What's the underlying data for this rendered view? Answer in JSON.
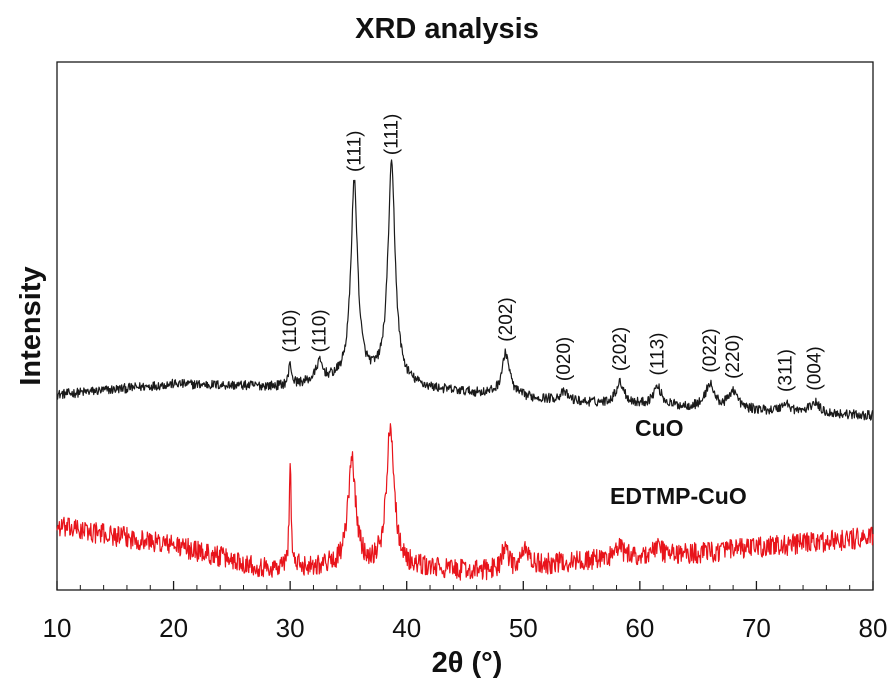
{
  "chart_data": {
    "type": "line",
    "title": "XRD analysis",
    "xlabel": "2θ (°)",
    "ylabel": "Intensity",
    "xlim": [
      10,
      80
    ],
    "ylim": [
      0,
      100
    ],
    "x_ticks": [
      "10",
      "20",
      "30",
      "40",
      "50",
      "60",
      "70",
      "80"
    ],
    "y_ticks_labeled": false,
    "grid": false,
    "series": [
      {
        "name": "CuO",
        "color": "#1a1a1a",
        "baseline": [
          [
            10,
            37
          ],
          [
            20,
            39
          ],
          [
            29,
            38.5
          ],
          [
            36,
            40
          ],
          [
            42,
            38
          ],
          [
            55,
            35.5
          ],
          [
            65,
            34.5
          ],
          [
            80,
            33
          ]
        ],
        "noise": 0.9,
        "peaks": [
          {
            "x": 30.0,
            "h": 4,
            "w": 0.15,
            "label": "(110)"
          },
          {
            "x": 32.5,
            "h": 3.5,
            "w": 0.35,
            "label": "(110)"
          },
          {
            "x": 35.5,
            "h": 37,
            "w": 0.35,
            "label": "(111)"
          },
          {
            "x": 38.7,
            "h": 41,
            "w": 0.38,
            "label": "(111)"
          },
          {
            "x": 48.5,
            "h": 8,
            "w": 0.4,
            "label": "(202)"
          },
          {
            "x": 53.5,
            "h": 1.5,
            "w": 0.45,
            "label": "(020)"
          },
          {
            "x": 58.3,
            "h": 4,
            "w": 0.45,
            "label": "(202)"
          },
          {
            "x": 61.5,
            "h": 3.5,
            "w": 0.45,
            "label": "(113)"
          },
          {
            "x": 66.0,
            "h": 4.5,
            "w": 0.45,
            "label": "(022)"
          },
          {
            "x": 68.0,
            "h": 3.5,
            "w": 0.45,
            "label": "(220)"
          },
          {
            "x": 72.5,
            "h": 1.5,
            "w": 0.45,
            "label": "(311)"
          },
          {
            "x": 75.0,
            "h": 2,
            "w": 0.45,
            "label": "(004)"
          }
        ]
      },
      {
        "name": "EDTMP-CuO",
        "color": "#e8141b",
        "baseline": [
          [
            10,
            12
          ],
          [
            20,
            8.5
          ],
          [
            28,
            4
          ],
          [
            33,
            4.5
          ],
          [
            42,
            4
          ],
          [
            46,
            3.5
          ],
          [
            55,
            5.5
          ],
          [
            65,
            7
          ],
          [
            80,
            10
          ]
        ],
        "noise": 2.0,
        "peaks": [
          {
            "x": 30.0,
            "h": 20,
            "w": 0.1
          },
          {
            "x": 35.3,
            "h": 20,
            "w": 0.4
          },
          {
            "x": 38.6,
            "h": 27,
            "w": 0.4
          },
          {
            "x": 48.4,
            "h": 4,
            "w": 0.3
          },
          {
            "x": 50.2,
            "h": 4,
            "w": 0.25
          },
          {
            "x": 58.2,
            "h": 2,
            "w": 0.5
          },
          {
            "x": 61.5,
            "h": 1.5,
            "w": 0.5
          }
        ]
      }
    ]
  }
}
